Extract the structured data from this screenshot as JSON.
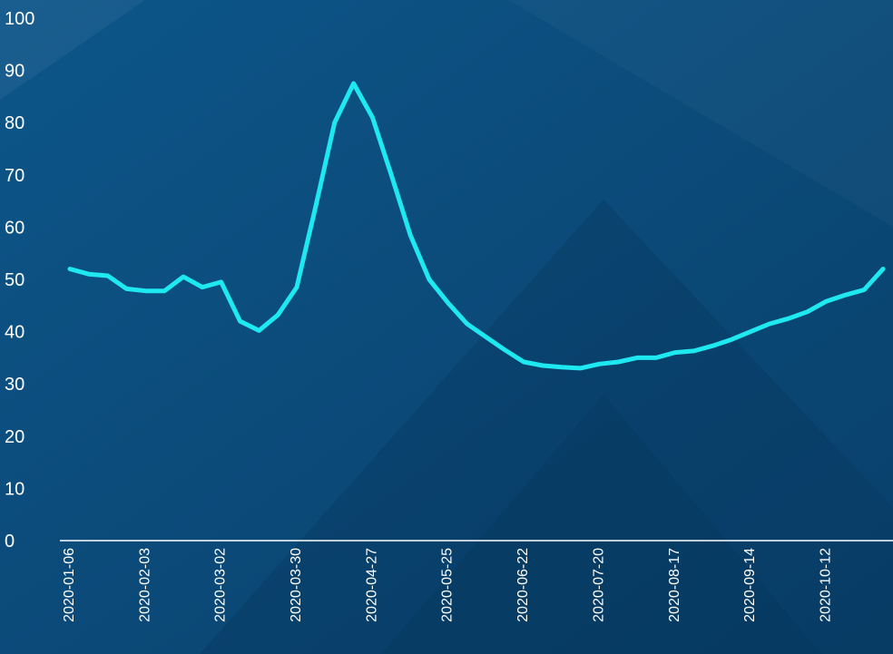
{
  "chart_data": {
    "type": "line",
    "title": "",
    "xlabel": "",
    "ylabel": "",
    "ylim": [
      0,
      100
    ],
    "y_ticks": [
      "0",
      "10",
      "20",
      "30",
      "40",
      "50",
      "60",
      "70",
      "80",
      "90",
      "100"
    ],
    "x_tick_labels": [
      "2020-01-06",
      "2020-02-03",
      "2020-03-02",
      "2020-03-30",
      "2020-04-27",
      "2020-05-25",
      "2020-06-22",
      "2020-07-20",
      "2020-08-17",
      "2020-09-14",
      "2020-10-12"
    ],
    "grid": false,
    "legend": "none",
    "colors": {
      "background": "#0b4c7e",
      "line": "#1ee8f0",
      "axis": "#ffffff",
      "text": "#ffffff"
    },
    "series": [
      {
        "x": [
          "2020-01-06",
          "2020-01-13",
          "2020-01-20",
          "2020-01-27",
          "2020-02-03",
          "2020-02-10",
          "2020-02-17",
          "2020-02-24",
          "2020-03-02",
          "2020-03-09",
          "2020-03-16",
          "2020-03-23",
          "2020-03-30",
          "2020-04-06",
          "2020-04-13",
          "2020-04-20",
          "2020-04-27",
          "2020-05-04",
          "2020-05-11",
          "2020-05-18",
          "2020-05-25",
          "2020-06-01",
          "2020-06-08",
          "2020-06-15",
          "2020-06-22",
          "2020-06-29",
          "2020-07-06",
          "2020-07-13",
          "2020-07-20",
          "2020-07-27",
          "2020-08-03",
          "2020-08-10",
          "2020-08-17",
          "2020-08-24",
          "2020-08-31",
          "2020-09-07",
          "2020-09-14",
          "2020-09-21",
          "2020-09-28",
          "2020-10-05",
          "2020-10-12",
          "2020-10-19",
          "2020-10-26",
          "2020-11-02"
        ],
        "values": [
          52,
          51,
          50.7,
          48.2,
          47.8,
          47.8,
          50.5,
          48.5,
          49.5,
          42,
          40.2,
          43.2,
          48.5,
          64,
          80,
          87.5,
          81,
          70,
          58.5,
          50,
          45.5,
          41.5,
          39,
          36.5,
          34.2,
          33.5,
          33.2,
          33,
          33.8,
          34.2,
          35,
          35,
          36,
          36.3,
          37.3,
          38.5,
          40,
          41.5,
          42.5,
          43.8,
          45.8,
          47,
          48,
          52
        ]
      }
    ]
  }
}
